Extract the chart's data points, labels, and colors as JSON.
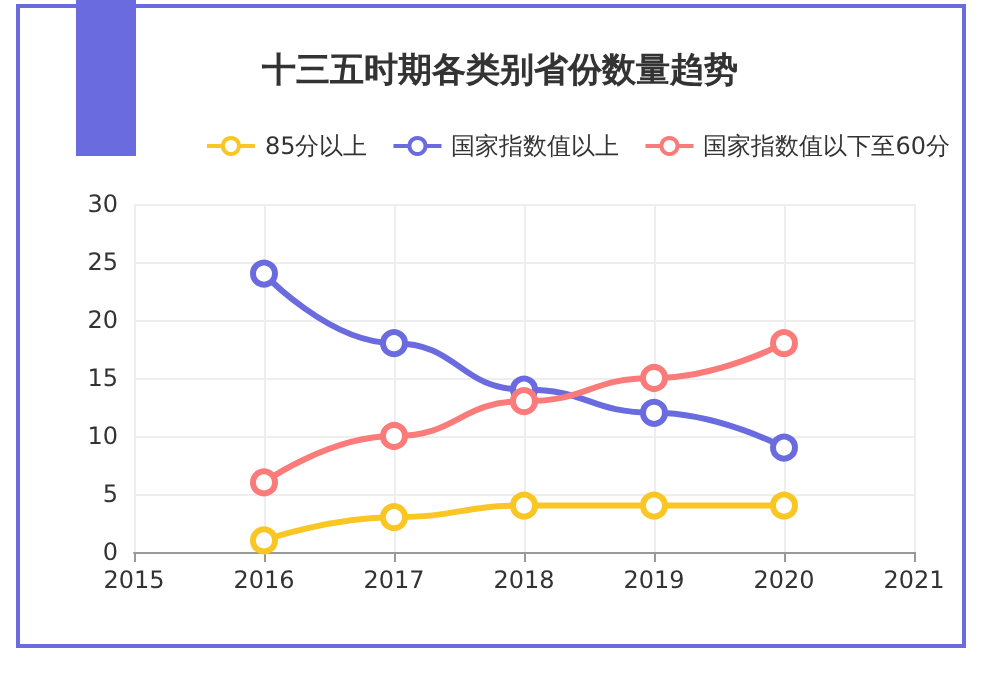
{
  "chart_data": {
    "type": "line",
    "title": "十三五时期各类别省份数量趋势",
    "x": [
      2016,
      2017,
      2018,
      2019,
      2020
    ],
    "series": [
      {
        "name": "85分以上",
        "color": "#f9c623",
        "values": [
          1,
          3,
          4,
          4,
          4
        ]
      },
      {
        "name": "国家指数值以上",
        "color": "#6b6be0",
        "values": [
          24,
          18,
          14,
          12,
          9
        ]
      },
      {
        "name": "国家指数值以下至60分",
        "color": "#fb7b7b",
        "values": [
          6,
          10,
          13,
          15,
          18
        ]
      }
    ],
    "xlim": [
      2015,
      2021
    ],
    "xticks": [
      2015,
      2016,
      2017,
      2018,
      2019,
      2020,
      2021
    ],
    "ylim": [
      0,
      30
    ],
    "yticks": [
      0,
      5,
      10,
      15,
      20,
      25,
      30
    ],
    "grid": true,
    "legend": "top right",
    "marker": "circle",
    "line_style": "solid"
  }
}
